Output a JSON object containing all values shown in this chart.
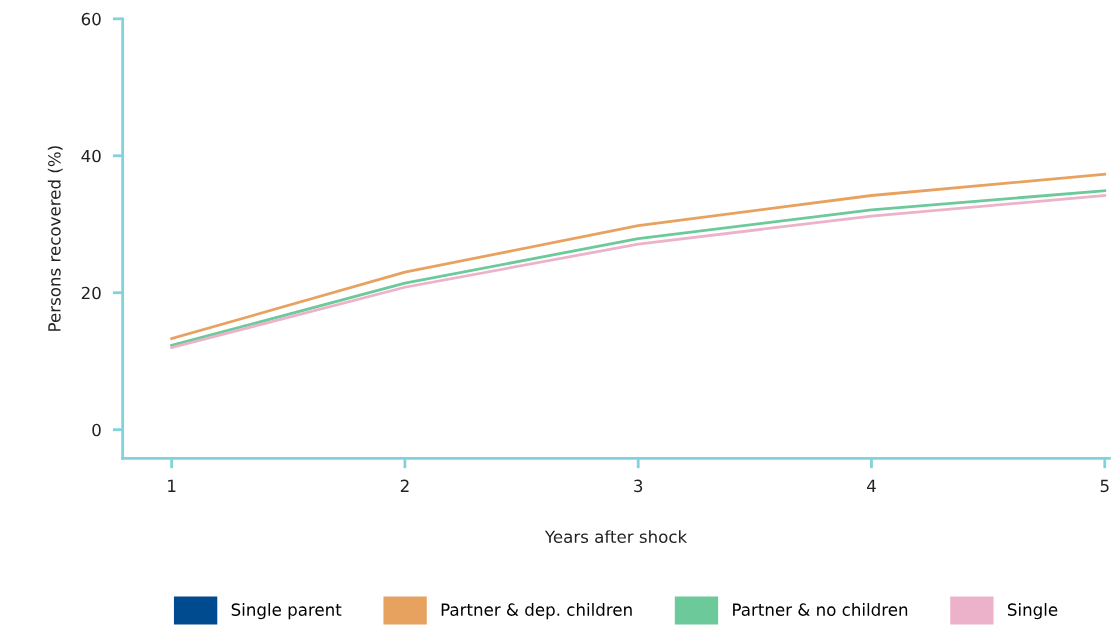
{
  "chart_data": {
    "type": "line",
    "xlabel": "Years after shock",
    "ylabel": "Persons recovered (%)",
    "x": [
      1,
      2,
      3,
      4,
      5
    ],
    "xlim": [
      0.79,
      5.02
    ],
    "xticks": [
      1,
      2,
      3,
      4,
      5
    ],
    "ylim": [
      -4.2,
      60
    ],
    "yticks": [
      0,
      20,
      40,
      60
    ],
    "grid": false,
    "legend": "bottom",
    "marker": "none",
    "line_style": "solid",
    "series": [
      {
        "name": "Single parent",
        "color": "#004a8f",
        "values": [
          null,
          null,
          null,
          null,
          null
        ]
      },
      {
        "name": "Partner & dep. children",
        "color": "#e8a25f",
        "values": [
          13.3,
          23.0,
          29.8,
          34.2,
          37.3
        ]
      },
      {
        "name": "Partner & no children",
        "color": "#6cc99a",
        "values": [
          12.3,
          21.4,
          27.9,
          32.1,
          34.9
        ]
      },
      {
        "name": "Single",
        "color": "#ecb2c9",
        "values": [
          12.0,
          20.8,
          27.1,
          31.2,
          34.2
        ]
      }
    ]
  }
}
